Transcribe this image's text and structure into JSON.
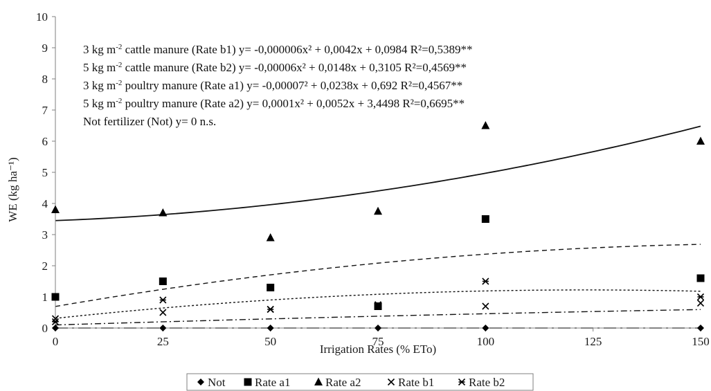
{
  "chart_data": {
    "type": "scatter",
    "xlabel": "Irrigation Rates (% ETo)",
    "ylabel": "WE (kg ha⁻¹)",
    "xlim": [
      0,
      150
    ],
    "ylim": [
      0,
      10
    ],
    "x_ticks": [
      "0",
      "25",
      "50",
      "75",
      "100",
      "125",
      "150"
    ],
    "y_ticks": [
      "0",
      "1",
      "2",
      "3",
      "4",
      "5",
      "6",
      "7",
      "8",
      "9",
      "10"
    ],
    "x": [
      0,
      25,
      50,
      75,
      100,
      150
    ],
    "grid": false,
    "legend_position": "bottom",
    "series": [
      {
        "name": "Not",
        "marker": "diamond",
        "values": [
          0,
          0,
          0,
          0,
          0,
          0
        ]
      },
      {
        "name": "Rate a1",
        "marker": "square",
        "values": [
          1.0,
          1.5,
          1.3,
          0.7,
          3.5,
          1.6
        ]
      },
      {
        "name": "Rate a2",
        "marker": "triangle",
        "values": [
          3.8,
          3.7,
          2.9,
          3.75,
          6.5,
          6.0
        ]
      },
      {
        "name": "Rate b1",
        "marker": "x",
        "values": [
          0.3,
          0.5,
          0.6,
          0.7,
          0.7,
          0.8
        ]
      },
      {
        "name": "Rate b2",
        "marker": "asterisk",
        "values": [
          0.2,
          0.9,
          0.6,
          0.75,
          1.5,
          1.0
        ]
      }
    ],
    "trendlines": [
      {
        "series": "Rate a2",
        "dash": "solid",
        "coefficients": [
          0.0001,
          0.0052,
          3.4498
        ]
      },
      {
        "series": "Rate a1",
        "dash": "dash",
        "coefficients": [
          -7e-05,
          0.0238,
          0.692
        ]
      },
      {
        "series": "Rate b2",
        "dash": "dot",
        "coefficients": [
          -6e-05,
          0.0148,
          0.3105
        ]
      },
      {
        "series": "Rate b1",
        "dash": "dashdot",
        "coefficients": [
          -6e-06,
          0.0042,
          0.0984
        ]
      },
      {
        "series": "Not",
        "dash": "longdashdot",
        "coefficients": [
          0,
          0,
          0
        ]
      }
    ],
    "annotations": [
      {
        "pre": "3 kg m",
        "sup": "-2",
        "post": " cattle manure (Rate b1) y= -0,000006x² + 0,0042x + 0,0984 R²=0,5389**"
      },
      {
        "pre": "5 kg m",
        "sup": "-2",
        "post": " cattle manure (Rate b2) y= -0,00006x² + 0,0148x + 0,3105 R²=0,4569**"
      },
      {
        "pre": "3 kg m",
        "sup": "-2",
        "post": " poultry manure (Rate a1) y= -0,00007² + 0,0238x + 0,692 R²=0,4567**"
      },
      {
        "pre": "5 kg m",
        "sup": "-2",
        "post": " poultry manure (Rate a2) y= 0,0001x² + 0,0052x + 3,4498 R²=0,6695**"
      },
      {
        "pre": "Not fertilizer (Not) y= 0 n.s.",
        "sup": "",
        "post": ""
      }
    ]
  }
}
